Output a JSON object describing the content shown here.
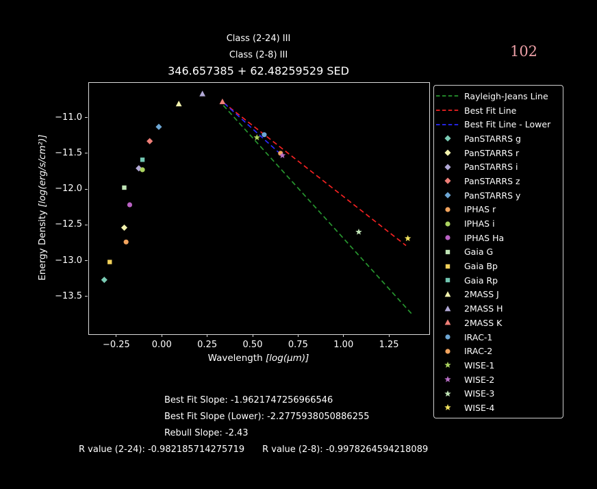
{
  "header": {
    "class_2_24": "Class (2-24) III",
    "class_2_8": "Class (2-8) III",
    "title": "346.657385 + 62.48259529 SED",
    "page_number": "102",
    "page_number_color": "#ec9fa6"
  },
  "axis": {
    "xlabel_text": "Wavelength ",
    "xlabel_math": "[log(μm)]",
    "ylabel_text": "Energy Density ",
    "ylabel_math": "[log(erg/s/cm²)]"
  },
  "footer": {
    "best_fit_slope": "Best Fit Slope: -1.9621747256966546",
    "best_fit_slope_lower": "Best Fit Slope (Lower): -2.2775938050886255",
    "rebull_slope": "Rebull Slope: -2.43",
    "r_value_2_24": "R value (2-24): -0.982185714275719",
    "r_value_2_8": "R value (2-8): -0.9978264594218089"
  },
  "colors": {
    "background": "#000000",
    "text": "#ffffff",
    "spine": "#dcdcdc"
  },
  "chart_data": {
    "type": "scatter",
    "title": "346.657385 + 62.48259529 SED",
    "xlabel": "Wavelength [log(μm)]",
    "ylabel": "Energy Density [log(erg/s/cm²)]",
    "xlim": [
      -0.404,
      1.468
    ],
    "ylim": [
      -14.02,
      -10.505
    ],
    "grid": false,
    "legend_position": "outside-right",
    "x_tick_values": [
      -0.25,
      0.0,
      0.25,
      0.5,
      0.75,
      1.0,
      1.25
    ],
    "x_tick_labels": [
      "−0.25",
      "0.00",
      "0.25",
      "0.50",
      "0.75",
      "1.00",
      "1.25"
    ],
    "y_tick_values": [
      -11.0,
      -11.5,
      -12.0,
      -12.5,
      -13.0,
      -13.5
    ],
    "y_tick_labels": [
      "−11.0",
      "−11.5",
      "−12.0",
      "−12.5",
      "−13.0",
      "−13.5"
    ],
    "lines": [
      {
        "name": "Rayleigh-Jeans Line",
        "color": "#27962f",
        "style": "dashed",
        "x": [
          0.335,
          1.38
        ],
        "y": [
          -10.82,
          -13.76
        ]
      },
      {
        "name": "Best Fit Line",
        "color": "#f52222",
        "style": "dashed",
        "x": [
          0.335,
          1.34
        ],
        "y": [
          -10.78,
          -12.78
        ]
      },
      {
        "name": "Best Fit Line - Lower",
        "color": "#2a2aff",
        "style": "dashed",
        "x": [
          0.34,
          0.645
        ],
        "y": [
          -10.79,
          -11.49
        ]
      }
    ],
    "series": [
      {
        "name": "PanSTARRS g",
        "marker": "diamond",
        "color": "#7acbb4",
        "x": -0.32,
        "y": -13.26
      },
      {
        "name": "PanSTARRS r",
        "marker": "diamond",
        "color": "#f3f3ae",
        "x": -0.21,
        "y": -12.53
      },
      {
        "name": "PanSTARRS i",
        "marker": "diamond",
        "color": "#b2a9d6",
        "x": -0.13,
        "y": -11.7
      },
      {
        "name": "PanSTARRS z",
        "marker": "diamond",
        "color": "#ef7f78",
        "x": -0.07,
        "y": -11.32
      },
      {
        "name": "PanSTARRS y",
        "marker": "diamond",
        "color": "#6da6d4",
        "x": -0.02,
        "y": -11.12
      },
      {
        "name": "IPHAS r",
        "marker": "circle",
        "color": "#f2a45e",
        "x": -0.2,
        "y": -12.73
      },
      {
        "name": "IPHAS i",
        "marker": "circle",
        "color": "#abd35f",
        "x": -0.11,
        "y": -11.72
      },
      {
        "name": "IPHAS Ha",
        "marker": "circle",
        "color": "#ba62c4",
        "x": -0.18,
        "y": -12.21
      },
      {
        "name": "Gaia G",
        "marker": "square",
        "color": "#c0e4b6",
        "x": -0.21,
        "y": -11.97
      },
      {
        "name": "Gaia Bp",
        "marker": "square",
        "color": "#f2d15a",
        "x": -0.29,
        "y": -13.01
      },
      {
        "name": "Gaia Rp",
        "marker": "square",
        "color": "#72c7b2",
        "x": -0.11,
        "y": -11.58
      },
      {
        "name": "2MASS J",
        "marker": "triangle",
        "color": "#f3f3ae",
        "x": 0.09,
        "y": -10.8
      },
      {
        "name": "2MASS H",
        "marker": "triangle",
        "color": "#b2a9d6",
        "x": 0.22,
        "y": -10.66
      },
      {
        "name": "2MASS K",
        "marker": "triangle",
        "color": "#ef7f78",
        "x": 0.33,
        "y": -10.77
      },
      {
        "name": "IRAC-1",
        "marker": "circle",
        "color": "#6da6d4",
        "x": 0.56,
        "y": -11.23
      },
      {
        "name": "IRAC-2",
        "marker": "circle",
        "color": "#f2a45e",
        "x": 0.65,
        "y": -11.49
      },
      {
        "name": "WISE-1",
        "marker": "star",
        "color": "#abd35f",
        "x": 0.52,
        "y": -11.27
      },
      {
        "name": "WISE-2",
        "marker": "star",
        "color": "#b96fc6",
        "x": 0.66,
        "y": -11.52
      },
      {
        "name": "WISE-3",
        "marker": "star",
        "color": "#c0e4b6",
        "x": 1.08,
        "y": -12.59
      },
      {
        "name": "WISE-4",
        "marker": "star",
        "color": "#f2e35e",
        "x": 1.35,
        "y": -12.68
      }
    ]
  }
}
